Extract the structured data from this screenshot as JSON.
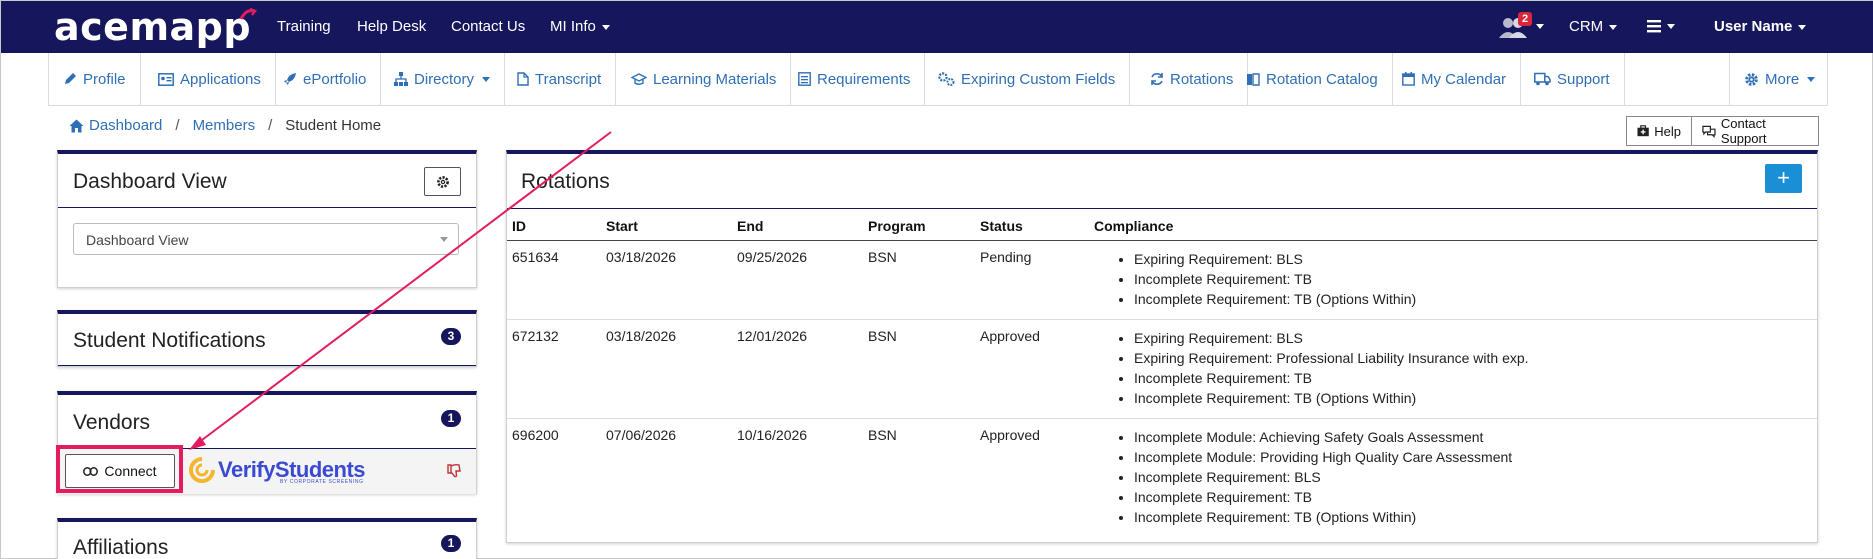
{
  "topbar": {
    "logo": "acemapp",
    "nav": [
      {
        "label": "Training",
        "has_caret": false
      },
      {
        "label": "Help Desk",
        "has_caret": false
      },
      {
        "label": "Contact Us",
        "has_caret": false
      },
      {
        "label": "MI Info",
        "has_caret": true
      }
    ],
    "notification_count": "2",
    "crm_label": "CRM",
    "user_label": "User Name"
  },
  "subnav": {
    "items": [
      {
        "label": "Profile",
        "icon": "pencil-icon"
      },
      {
        "label": "Applications",
        "icon": "id-card-icon"
      },
      {
        "label": "ePortfolio",
        "icon": "rocket-icon"
      },
      {
        "label": "Directory",
        "icon": "sitemap-icon"
      },
      {
        "label": "Transcript",
        "icon": "file-icon"
      },
      {
        "label": "Learning Materials",
        "icon": "graduation-cap-icon"
      },
      {
        "label": "Requirements",
        "icon": "list-icon"
      },
      {
        "label": "Expiring Custom Fields",
        "icon": "cogs-icon"
      },
      {
        "label": "Rotations",
        "icon": "refresh-icon"
      },
      {
        "label": "Rotation Catalog",
        "icon": "book-icon"
      },
      {
        "label": "My Calendar",
        "icon": "calendar-icon"
      },
      {
        "label": "Support",
        "icon": "truck-icon"
      }
    ],
    "more_label": "More"
  },
  "breadcrumb": {
    "dashboard": "Dashboard",
    "members": "Members",
    "current": "Student Home",
    "separator": "/"
  },
  "actions": {
    "help": "Help",
    "contact_support": "Contact Support"
  },
  "dashboard_view": {
    "title": "Dashboard View",
    "select_value": "Dashboard View"
  },
  "student_notifications": {
    "title": "Student Notifications",
    "count": "3"
  },
  "vendors": {
    "title": "Vendors",
    "count": "1",
    "connect_label": "Connect",
    "vendor_logo_text": "VerifyStudents",
    "vendor_logo_subtext": "BY CORPORATE SCREENING"
  },
  "affiliations": {
    "title": "Affiliations",
    "count": "1"
  },
  "rotations": {
    "title": "Rotations",
    "add_label": "+",
    "columns": [
      "ID",
      "Start",
      "End",
      "Program",
      "Status",
      "Compliance"
    ],
    "rows": [
      {
        "id": "651634",
        "start": "03/18/2026",
        "end": "09/25/2026",
        "program": "BSN",
        "status": "Pending",
        "compliance": [
          "Expiring Requirement: BLS",
          "Incomplete Requirement: TB",
          "Incomplete Requirement: TB (Options Within)"
        ]
      },
      {
        "id": "672132",
        "start": "03/18/2026",
        "end": "12/01/2026",
        "program": "BSN",
        "status": "Approved",
        "compliance": [
          "Expiring Requirement: BLS",
          "Expiring Requirement: Professional Liability Insurance with exp.",
          "Incomplete Requirement: TB",
          "Incomplete Requirement: TB (Options Within)"
        ]
      },
      {
        "id": "696200",
        "start": "07/06/2026",
        "end": "10/16/2026",
        "program": "BSN",
        "status": "Approved",
        "compliance": [
          "Incomplete Module: Achieving Safety Goals Assessment",
          "Incomplete Module: Providing High Quality Care Assessment",
          "Incomplete Requirement: BLS",
          "Incomplete Requirement: TB",
          "Incomplete Requirement: TB (Options Within)"
        ]
      }
    ]
  },
  "colors": {
    "navy": "#16165c",
    "link": "#2f6fb5",
    "accent_blue": "#1a8fd6",
    "annotation_pink": "#e31c5f",
    "badge_red": "#d9263b",
    "vendor_logo_blue": "#3b4bd1",
    "vendor_logo_gold": "#f2b632"
  }
}
